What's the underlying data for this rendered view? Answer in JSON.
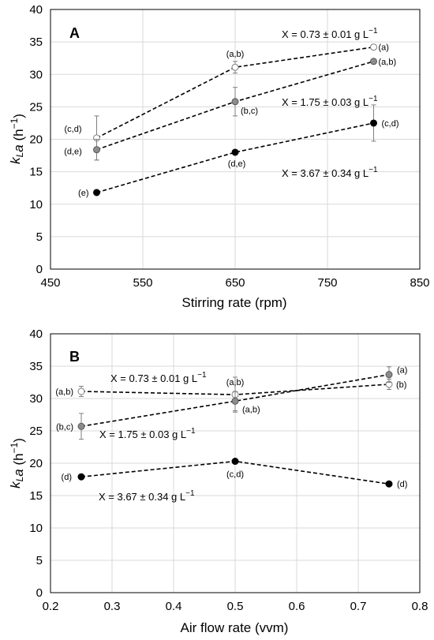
{
  "chart_data": [
    {
      "type": "scatter",
      "panel": "A",
      "xlabel": "Stirring rate (rpm)",
      "ylabel_main": "k",
      "ylabel_sub": "L",
      "ylabel_tail": "a (h",
      "ylabel_sup": "−1",
      "ylabel_close": ")",
      "xlim": [
        450,
        850
      ],
      "ylim": [
        0,
        40
      ],
      "xticks": [
        "450",
        "550",
        "650",
        "750",
        "850"
      ],
      "yticks": [
        "0",
        "5",
        "10",
        "15",
        "20",
        "25",
        "30",
        "35",
        "40"
      ],
      "xtick_values": [
        450,
        550,
        650,
        750,
        850
      ],
      "ytick_values": [
        0,
        5,
        10,
        15,
        20,
        25,
        30,
        35,
        40
      ],
      "series": [
        {
          "name": "X = 0.73 ± 0.01 g L",
          "name_sup": "−1",
          "marker": "open",
          "x": [
            500,
            650,
            800
          ],
          "y": [
            20.2,
            31.1,
            34.2
          ],
          "err": [
            3.4,
            0.9,
            0
          ],
          "labels": [
            "(c,d)",
            "(a,b)",
            "(a)"
          ]
        },
        {
          "name": "X = 1.75 ± 0.03 g L",
          "name_sup": "−1",
          "marker": "gray",
          "x": [
            500,
            650,
            800
          ],
          "y": [
            18.4,
            25.8,
            32.0
          ],
          "err": [
            1.6,
            2.2,
            0
          ],
          "labels": [
            "(d,e)",
            "(b,c)",
            "(a,b)"
          ]
        },
        {
          "name": "X = 3.67 ± 0.34 g L",
          "name_sup": "−1",
          "marker": "black",
          "x": [
            500,
            650,
            800
          ],
          "y": [
            11.8,
            18.0,
            22.5
          ],
          "err": [
            0,
            0,
            2.8
          ],
          "labels": [
            "(e)",
            "(d,e)",
            "(c,d)"
          ]
        }
      ]
    },
    {
      "type": "scatter",
      "panel": "B",
      "xlabel": "Air flow rate (vvm)",
      "ylabel_main": "k",
      "ylabel_sub": "L",
      "ylabel_tail": "a (h",
      "ylabel_sup": "−1",
      "ylabel_close": ")",
      "xlim": [
        0.2,
        0.8
      ],
      "ylim": [
        0,
        40
      ],
      "xticks": [
        "0.2",
        "0.3",
        "0.4",
        "0.5",
        "0.6",
        "0.7",
        "0.8"
      ],
      "yticks": [
        "0",
        "5",
        "10",
        "15",
        "20",
        "25",
        "30",
        "35",
        "40"
      ],
      "xtick_values": [
        0.2,
        0.3,
        0.4,
        0.5,
        0.6,
        0.7,
        0.8
      ],
      "ytick_values": [
        0,
        5,
        10,
        15,
        20,
        25,
        30,
        35,
        40
      ],
      "series": [
        {
          "name": "X = 0.73 ± 0.01 g L",
          "name_sup": "−1",
          "marker": "open",
          "x": [
            0.25,
            0.5,
            0.75
          ],
          "y": [
            31.1,
            30.6,
            32.2
          ],
          "err": [
            0.8,
            2.7,
            0.8
          ],
          "labels": [
            "(a,b)",
            "(a,b)",
            "(b)"
          ]
        },
        {
          "name": "X = 1.75 ± 0.03 g L",
          "name_sup": "−1",
          "marker": "gray",
          "x": [
            0.25,
            0.5,
            0.75
          ],
          "y": [
            25.7,
            29.6,
            33.7
          ],
          "err": [
            2.0,
            1.5,
            1.2
          ],
          "labels": [
            "(b,c)",
            "(a,b)",
            "(a)"
          ]
        },
        {
          "name": "X = 3.67 ± 0.34 g L",
          "name_sup": "−1",
          "marker": "black",
          "x": [
            0.25,
            0.5,
            0.75
          ],
          "y": [
            17.9,
            20.3,
            16.8
          ],
          "err": [
            0,
            0,
            0
          ],
          "labels": [
            "(d)",
            "(c,d)",
            "(d)"
          ]
        }
      ]
    }
  ],
  "colors": {
    "open": "#ffffff",
    "gray": "#8c8c8c",
    "black": "#000000",
    "errorbar": "#7f7f7f",
    "grid": "#d9d9d9"
  }
}
